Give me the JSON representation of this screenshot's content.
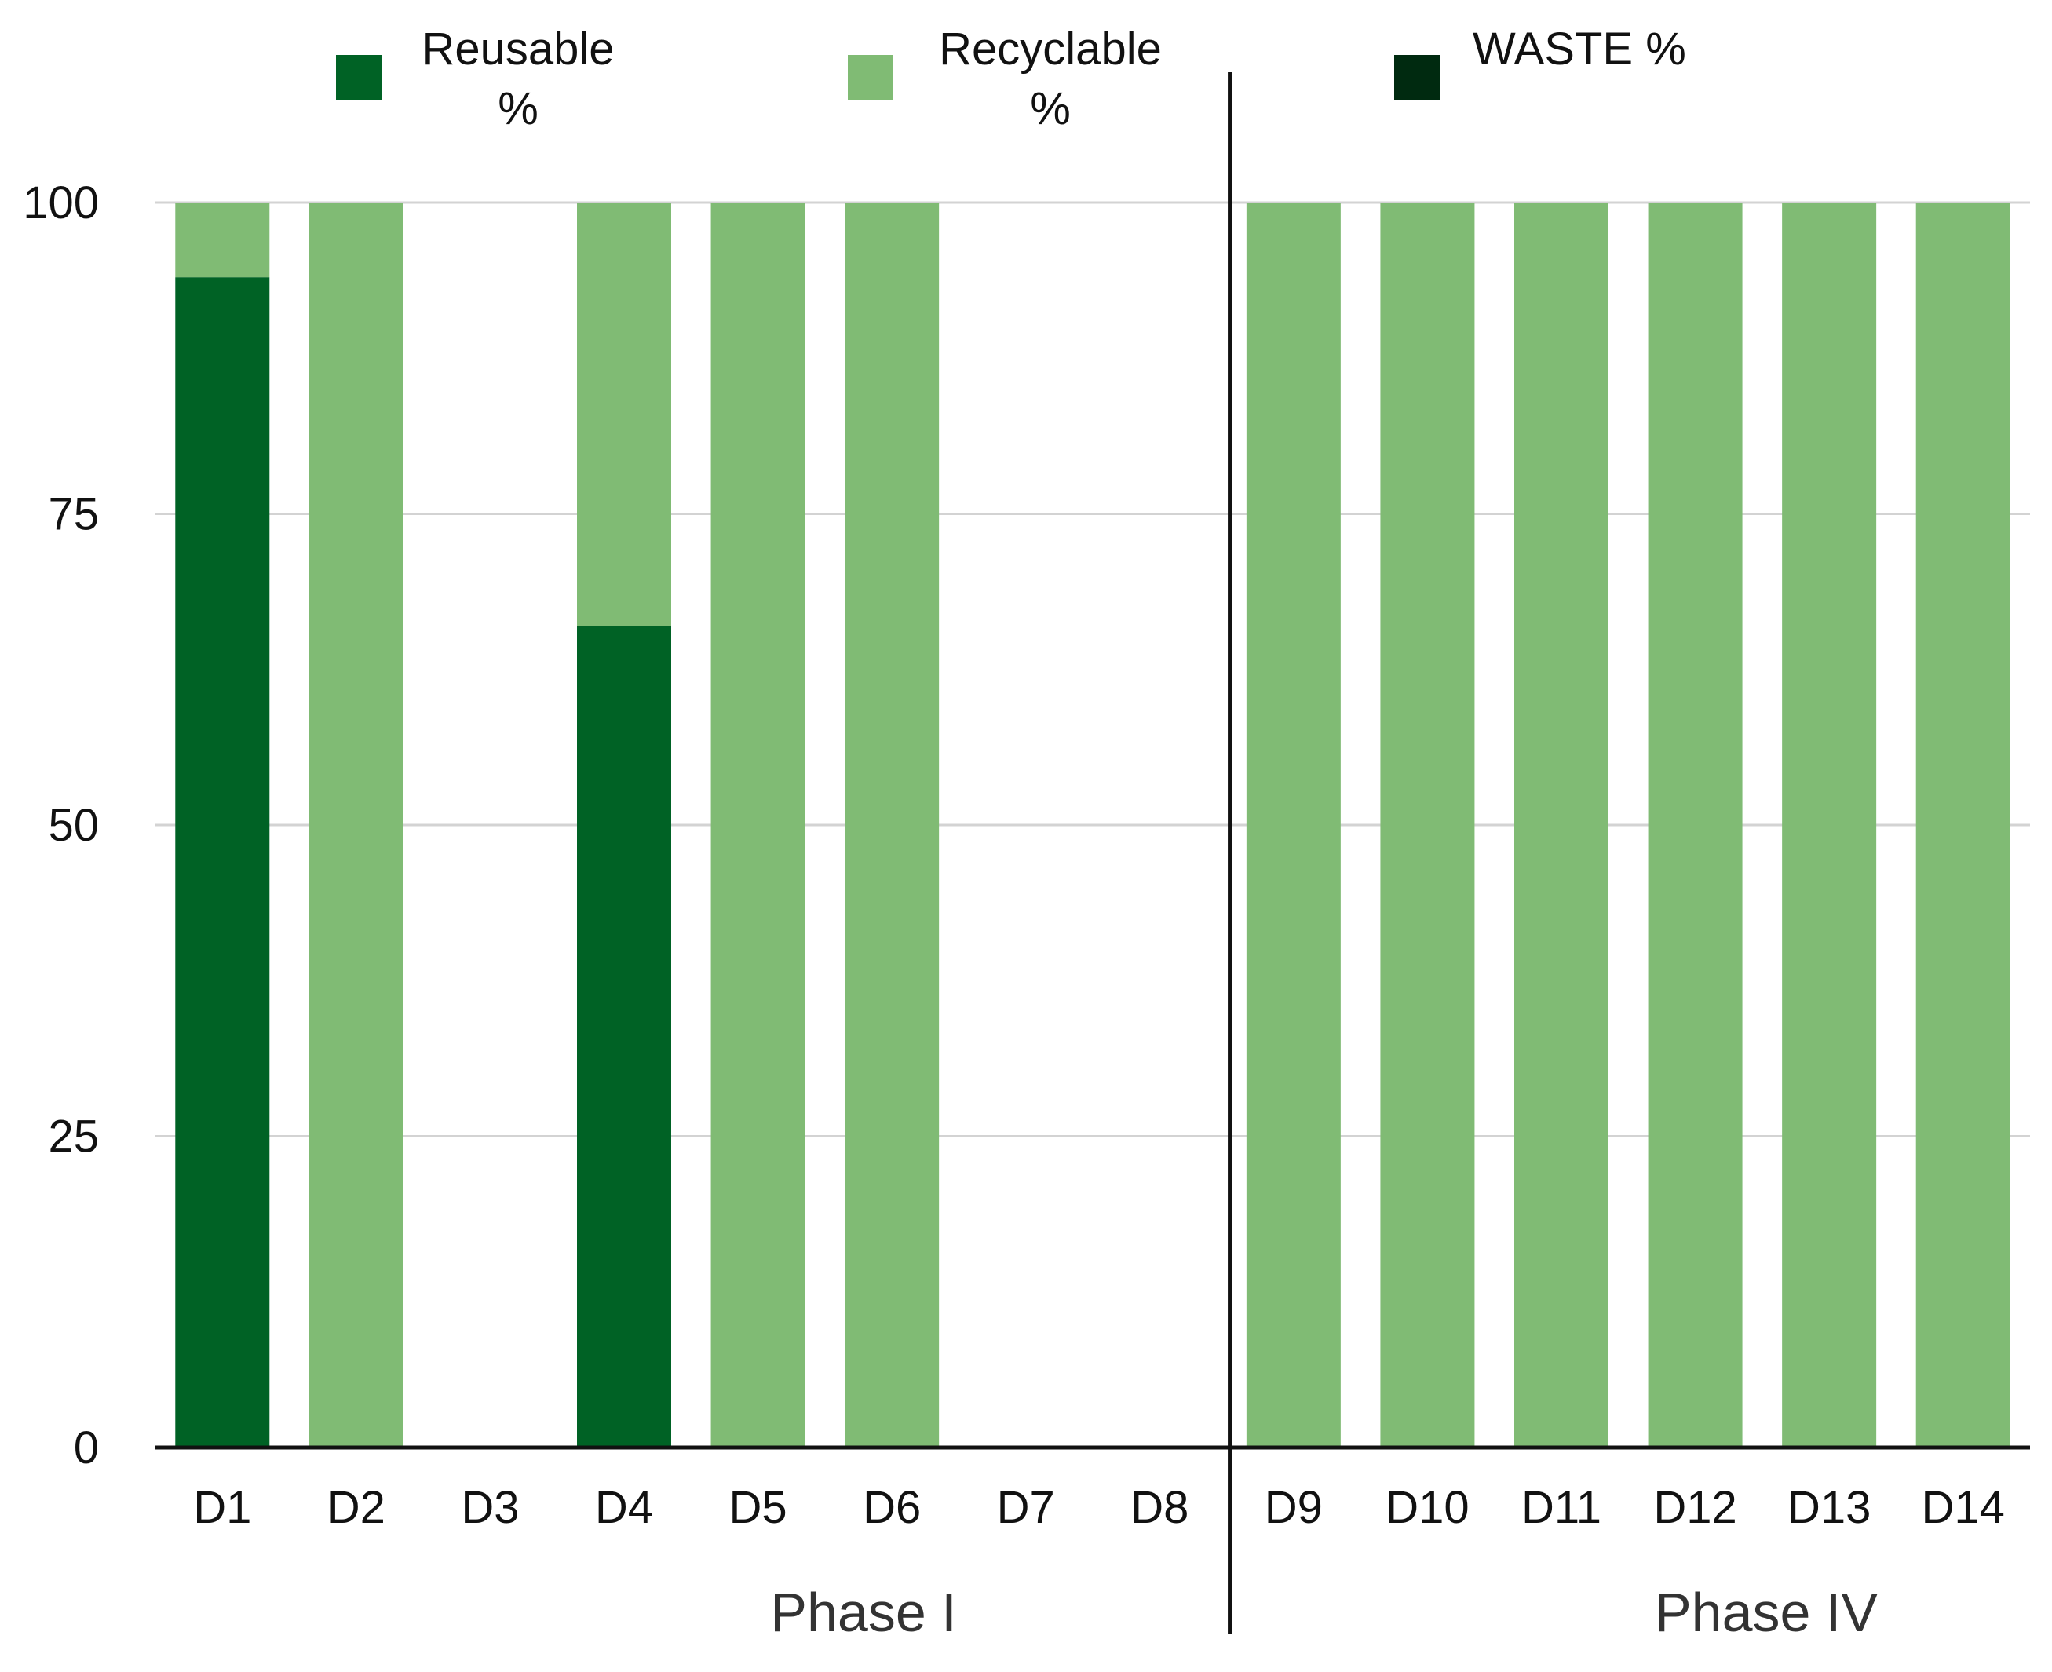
{
  "chart_data": {
    "type": "bar",
    "stacked": true,
    "categories": [
      "D1",
      "D2",
      "D3",
      "D4",
      "D5",
      "D6",
      "D7",
      "D8",
      "D9",
      "D10",
      "D11",
      "D12",
      "D13",
      "D14"
    ],
    "series": [
      {
        "name": "Reusable %",
        "name_lines": [
          "Reusable",
          "%"
        ],
        "color": "#006225",
        "values": [
          94,
          0,
          0,
          66,
          0,
          0,
          0,
          0,
          0,
          0,
          0,
          0,
          0,
          0
        ]
      },
      {
        "name": "Recyclable %",
        "name_lines": [
          "Recyclable",
          "%"
        ],
        "color": "#80BB74",
        "values": [
          6,
          100,
          0,
          34,
          100,
          100,
          0,
          0,
          100,
          100,
          100,
          100,
          100,
          100
        ]
      },
      {
        "name": "WASTE %",
        "name_lines": [
          "WASTE %"
        ],
        "color": "#002A10",
        "values": [
          0,
          0,
          0,
          0,
          0,
          0,
          0,
          0,
          0,
          0,
          0,
          0,
          0,
          0
        ]
      }
    ],
    "ylim": [
      0,
      100
    ],
    "yticks": [
      "0",
      "25",
      "50",
      "75",
      "100"
    ],
    "grid": true,
    "legend_position": "top",
    "groups": [
      {
        "label": "Phase I",
        "categories": [
          "D1",
          "D2",
          "D3",
          "D4",
          "D5",
          "D6",
          "D7",
          "D8"
        ]
      },
      {
        "label": "Phase IV",
        "categories": [
          "D9",
          "D10",
          "D11",
          "D12",
          "D13",
          "D14"
        ]
      }
    ],
    "title": "",
    "xlabel": "",
    "ylabel": ""
  }
}
